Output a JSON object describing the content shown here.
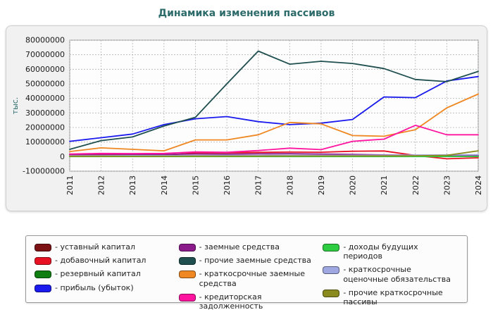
{
  "title": "Динамика изменения пассивов",
  "colors": {
    "title": "#2d6b6b",
    "panel_bg": "#f1f1f1",
    "plot_bg": "#fdfdfd",
    "grid": "#b5b5b5",
    "axis_text": "#1a1a1a"
  },
  "chart_data": {
    "type": "line",
    "title": "Динамика изменения пассивов",
    "xlabel": "",
    "ylabel": "тыс.",
    "x": [
      2011,
      2012,
      2013,
      2014,
      2015,
      2016,
      2017,
      2018,
      2019,
      2020,
      2021,
      2022,
      2023,
      2024
    ],
    "ylim": [
      -10000000,
      80000000
    ],
    "ytick_step": 10000000,
    "grid": true,
    "legend_position": "bottom",
    "series": [
      {
        "name": "уставный капитал",
        "color": "#7b1113",
        "values": [
          500000,
          500000,
          500000,
          500000,
          500000,
          500000,
          500000,
          500000,
          500000,
          500000,
          500000,
          500000,
          500000,
          500000
        ]
      },
      {
        "name": "добавочный капитал",
        "color": "#e81123",
        "values": [
          1200000,
          1300000,
          1100000,
          1000000,
          2600000,
          2700000,
          2900000,
          3100000,
          3000000,
          3700000,
          3900000,
          800000,
          -1500000,
          -800000
        ]
      },
      {
        "name": "резервный капитал",
        "color": "#0f7d0f",
        "values": [
          150000,
          150000,
          150000,
          150000,
          150000,
          150000,
          150000,
          150000,
          150000,
          150000,
          150000,
          150000,
          150000,
          150000
        ]
      },
      {
        "name": "прибыль (убыток)",
        "color": "#1a1aee",
        "values": [
          10500000,
          13000000,
          15500000,
          22000000,
          26000000,
          27500000,
          24000000,
          22000000,
          23000000,
          25500000,
          41000000,
          40500000,
          52000000,
          55000000
        ]
      },
      {
        "name": "заемные средства",
        "color": "#8b1a8b",
        "values": [
          1500000,
          1700000,
          1600000,
          1500000,
          1800000,
          1700000,
          1900000,
          2000000,
          1800000,
          1500000,
          1200000,
          1000000,
          900000,
          800000
        ]
      },
      {
        "name": "прочие заемные средства",
        "color": "#1f4f4f",
        "values": [
          5000000,
          11000000,
          13500000,
          21000000,
          27000000,
          50000000,
          72500000,
          63500000,
          65500000,
          64000000,
          60500000,
          53000000,
          51500000,
          58500000
        ]
      },
      {
        "name": "краткосрочные заемные средства",
        "color": "#ef8722",
        "values": [
          3500000,
          6000000,
          5000000,
          4000000,
          11500000,
          11500000,
          15000000,
          23500000,
          22500000,
          14500000,
          14000000,
          18500000,
          33500000,
          43000000
        ]
      },
      {
        "name": "кредиторская задолженность",
        "color": "#ff14a0",
        "values": [
          1800000,
          2200000,
          2100000,
          2200000,
          3200000,
          3000000,
          4200000,
          5800000,
          4800000,
          10500000,
          12000000,
          21500000,
          15000000,
          15000000
        ]
      },
      {
        "name": "доходы будущих периодов",
        "color": "#2ecc40",
        "values": [
          50000,
          50000,
          50000,
          50000,
          50000,
          50000,
          50000,
          50000,
          50000,
          50000,
          50000,
          50000,
          50000,
          50000
        ]
      },
      {
        "name": "краткосрочные оценочные обязательства",
        "color": "#9fa8e0",
        "values": [
          600000,
          650000,
          700000,
          700000,
          750000,
          800000,
          850000,
          900000,
          900000,
          950000,
          1000000,
          1100000,
          1200000,
          1300000
        ]
      },
      {
        "name": "прочие краткосрочные пассивы",
        "color": "#8a8a1e",
        "values": [
          200000,
          250000,
          200000,
          250000,
          300000,
          300000,
          350000,
          400000,
          400000,
          450000,
          500000,
          600000,
          900000,
          4000000
        ]
      }
    ]
  },
  "legend": {
    "columns": [
      [
        0,
        1,
        2,
        3
      ],
      [
        4,
        5,
        6,
        7
      ],
      [
        8,
        9,
        10
      ]
    ],
    "label_prefix": "- "
  }
}
